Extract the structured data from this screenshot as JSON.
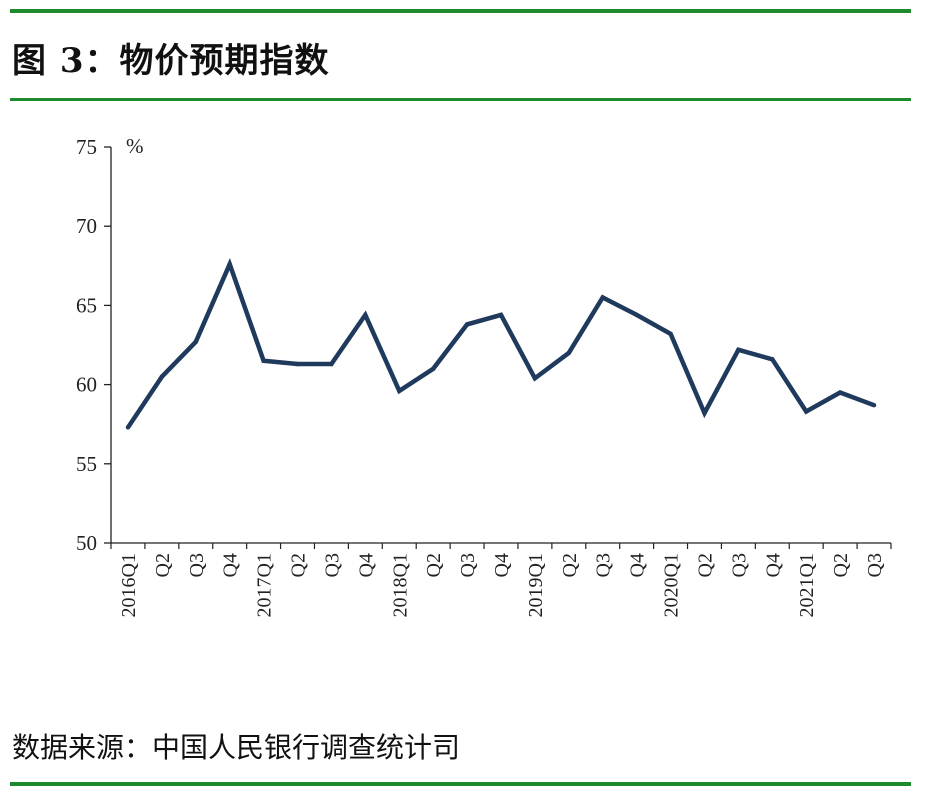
{
  "header": {
    "title": "图 3：物价预期指数"
  },
  "footer": {
    "source": "数据来源：中国人民银行调查统计司"
  },
  "colors": {
    "line": "#1f3a5c",
    "rule": "#1e8a2e",
    "axis": "#222222"
  },
  "chart_data": {
    "type": "line",
    "title": "物价预期指数",
    "ylabel": "%",
    "xlabel": "",
    "ylim": [
      50,
      75
    ],
    "yticks": [
      50,
      55,
      60,
      65,
      70,
      75
    ],
    "grid": false,
    "legend": "none",
    "categories": [
      "2016Q1",
      "Q2",
      "Q3",
      "Q4",
      "2017Q1",
      "Q2",
      "Q3",
      "Q4",
      "2018Q1",
      "Q2",
      "Q3",
      "Q4",
      "2019Q1",
      "Q2",
      "Q3",
      "Q4",
      "2020Q1",
      "Q2",
      "Q3",
      "Q4",
      "2021Q1",
      "Q2",
      "Q3"
    ],
    "series": [
      {
        "name": "物价预期指数",
        "values": [
          57.3,
          60.5,
          62.7,
          67.6,
          61.5,
          61.3,
          61.3,
          64.4,
          59.6,
          61.0,
          63.8,
          64.4,
          60.4,
          62.0,
          65.5,
          64.4,
          63.2,
          58.2,
          62.2,
          61.6,
          58.3,
          59.5,
          58.7
        ]
      }
    ]
  }
}
